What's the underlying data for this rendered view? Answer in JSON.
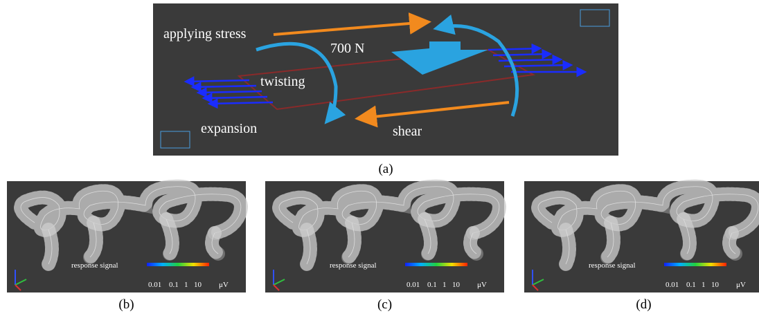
{
  "panel_a": {
    "labels": {
      "stress": "applying stress",
      "force": "700 N",
      "twist": "twisting",
      "expansion": "expansion",
      "shear": "shear"
    },
    "caption": "(a)"
  },
  "panels": [
    {
      "signal_label": "response signal",
      "scale_labels": [
        "0.01",
        "0.1",
        "1",
        "10",
        "μV"
      ],
      "caption": "(b)"
    },
    {
      "signal_label": "response signal",
      "scale_labels": [
        "0.01",
        "0.1",
        "1",
        "10",
        "μV"
      ],
      "caption": "(c)"
    },
    {
      "signal_label": "response signal",
      "scale_labels": [
        "0.01",
        "0.1",
        "1",
        "10",
        "μV"
      ],
      "caption": "(d)"
    }
  ]
}
